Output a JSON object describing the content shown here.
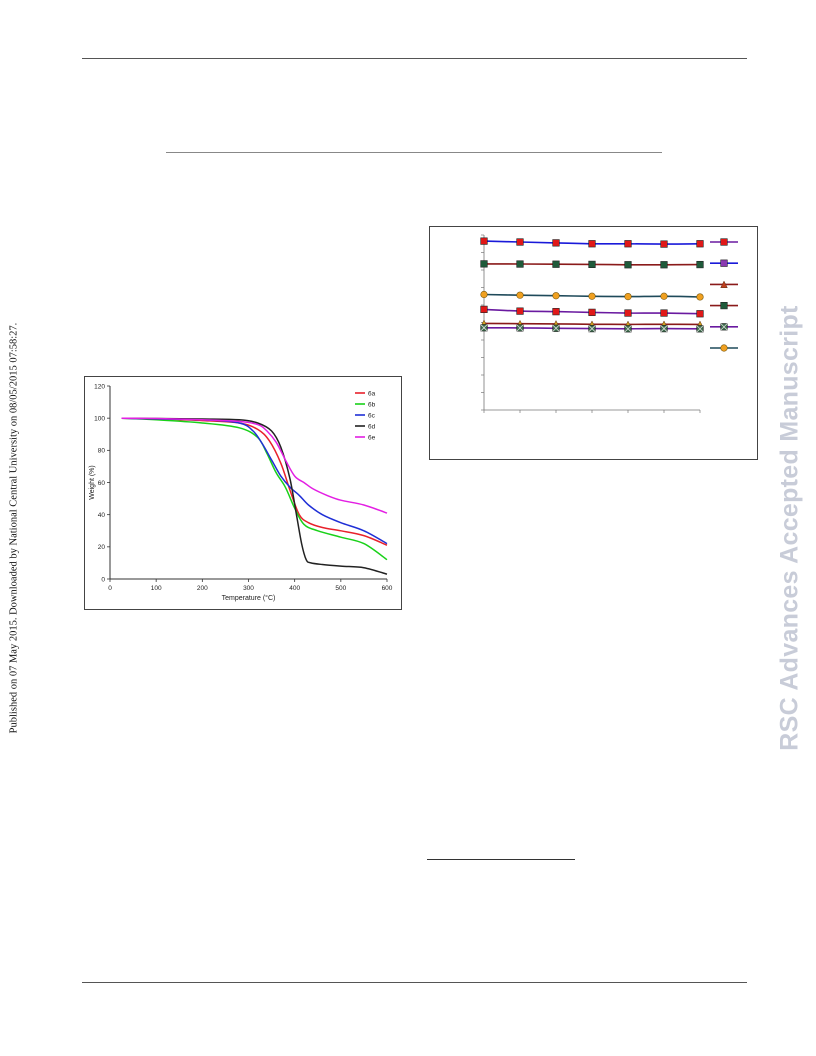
{
  "sidebar_note": "Published on 07 May 2015. Downloaded by National Central University on 08/05/2015 07:58:27.",
  "watermark": "RSC Advances Accepted Manuscript",
  "figures": {
    "tga": {
      "chart_data": {
        "type": "line",
        "xlabel": "Temperature (°C)",
        "ylabel": "Weight (%)",
        "xlim": [
          0,
          600
        ],
        "ylim": [
          0,
          120
        ],
        "x_ticks": [
          "0",
          "100",
          "200",
          "300",
          "400",
          "500",
          "600"
        ],
        "y_ticks": [
          "0",
          "20",
          "40",
          "60",
          "80",
          "100",
          "120"
        ],
        "grid": false,
        "legend_position": "top-right",
        "series": [
          {
            "name": "6a",
            "color": "#e8212b",
            "x": [
              25,
              100,
              200,
              280,
              320,
              345,
              370,
              390,
              410,
              430,
              460,
              500,
              550,
              600
            ],
            "y": [
              100,
              99.5,
              98.5,
              97,
              93,
              86,
              72,
              55,
              40,
              35,
              32,
              30,
              27,
              21
            ]
          },
          {
            "name": "6b",
            "color": "#19d119",
            "x": [
              25,
              100,
              200,
              280,
              320,
              340,
              360,
              380,
              400,
              420,
              450,
              500,
              550,
              600
            ],
            "y": [
              100,
              99,
              97,
              94,
              88,
              78,
              66,
              57,
              44,
              34,
              30,
              26,
              22,
              12
            ]
          },
          {
            "name": "6c",
            "color": "#1f2fd6",
            "x": [
              25,
              100,
              200,
              280,
              310,
              330,
              350,
              370,
              390,
              410,
              430,
              460,
              500,
              550,
              600
            ],
            "y": [
              100,
              99.5,
              99,
              97,
              92,
              84,
              74,
              64,
              57,
              52,
              46,
              40,
              35,
              30,
              22
            ]
          },
          {
            "name": "6d",
            "color": "#222222",
            "x": [
              25,
              100,
              200,
              280,
              320,
              350,
              370,
              390,
              405,
              415,
              425,
              435,
              460,
              500,
              550,
              600
            ],
            "y": [
              100,
              99.8,
              99.5,
              99,
              97,
              92,
              82,
              62,
              38,
              22,
              12,
              10,
              9,
              8,
              7,
              3
            ]
          },
          {
            "name": "6e",
            "color": "#e31fe3",
            "x": [
              25,
              100,
              200,
              280,
              320,
              340,
              360,
              380,
              400,
              420,
              440,
              470,
              500,
              550,
              600
            ],
            "y": [
              100,
              99.8,
              99,
              98,
              96,
              92,
              85,
              74,
              64,
              60,
              56,
              52,
              49,
              46,
              41
            ]
          }
        ]
      }
    },
    "stability": {
      "chart_data": {
        "type": "line",
        "grid": false,
        "legend_position": "right",
        "x_count": 7,
        "series": [
          {
            "color": "#1a1ad9",
            "marker": "square",
            "marker_color": "#e01818",
            "values": [
              96.5,
              96,
              95.5,
              95,
              95,
              94.8,
              95
            ]
          },
          {
            "color": "#8a1a1a",
            "marker": "square",
            "marker_color": "#1f5a3a",
            "values": [
              83.5,
              83.4,
              83.3,
              83.2,
              83,
              83,
              83.1
            ]
          },
          {
            "color": "#1f4a5a",
            "marker": "circle",
            "marker_color": "#f0a020",
            "values": [
              66,
              65.6,
              65.3,
              65,
              64.8,
              65,
              64.6
            ]
          },
          {
            "color": "#6a1aa0",
            "marker": "square",
            "marker_color": "#e01818",
            "values": [
              57.5,
              56.5,
              56.2,
              55.8,
              55.4,
              55.4,
              55
            ]
          },
          {
            "color": "#8a1a1a",
            "marker": "triangle",
            "marker_color": "#d0a020",
            "values": [
              49.5,
              49.3,
              49.2,
              49,
              48.9,
              49,
              48.9
            ]
          },
          {
            "color": "#6a1aa0",
            "marker": "xsquare",
            "marker_color": "#3a6a4a",
            "values": [
              47,
              46.9,
              46.7,
              46.5,
              46.4,
              46.5,
              46.4
            ]
          }
        ],
        "ylim": [
          0,
          100
        ],
        "legend_items": [
          {
            "line": "#6a1aa0",
            "marker": "square",
            "marker_color": "#e01818"
          },
          {
            "line": "#1a1ad9",
            "marker": "square",
            "marker_color": "#8a3ab0"
          },
          {
            "line": "#8a1a1a",
            "marker": "triangle",
            "marker_color": "#c04020"
          },
          {
            "line": "#8a1a1a",
            "marker": "square",
            "marker_color": "#1f5a3a"
          },
          {
            "line": "#6a1aa0",
            "marker": "xsquare",
            "marker_color": "#3a6a4a"
          },
          {
            "line": "#1f4a5a",
            "marker": "circle",
            "marker_color": "#f0a020"
          }
        ]
      }
    }
  }
}
